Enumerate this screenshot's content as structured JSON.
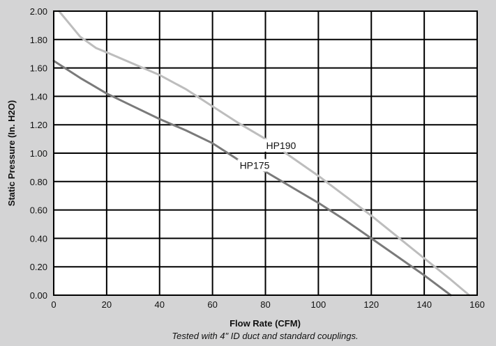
{
  "chart_data": {
    "type": "line",
    "title": "",
    "xlabel": "Flow Rate (CFM)",
    "ylabel": "Static Pressure (In. H2O)",
    "note": "Tested with 4\" ID duct and standard couplings.",
    "xlim": [
      0,
      160
    ],
    "ylim": [
      0,
      2.0
    ],
    "xticks": [
      "0",
      "20",
      "40",
      "60",
      "80",
      "100",
      "120",
      "140",
      "160"
    ],
    "yticks": [
      "0.00",
      "0.20",
      "0.40",
      "0.60",
      "0.80",
      "1.00",
      "1.20",
      "1.40",
      "1.60",
      "1.80",
      "2.00"
    ],
    "grid": true,
    "series": [
      {
        "name": "HP190",
        "color": "#bdbdbd",
        "x": [
          2,
          10,
          16,
          20,
          30,
          40,
          50,
          60,
          70,
          80,
          90,
          100,
          110,
          120,
          130,
          140,
          150,
          157
        ],
        "y": [
          2.0,
          1.82,
          1.74,
          1.71,
          1.63,
          1.55,
          1.45,
          1.33,
          1.21,
          1.1,
          0.97,
          0.84,
          0.7,
          0.56,
          0.41,
          0.26,
          0.11,
          0.0
        ]
      },
      {
        "name": "HP175",
        "color": "#7a7a7a",
        "x": [
          0,
          10,
          20,
          30,
          40,
          50,
          60,
          70,
          80,
          90,
          100,
          110,
          120,
          130,
          140,
          150
        ],
        "y": [
          1.65,
          1.53,
          1.42,
          1.33,
          1.24,
          1.16,
          1.07,
          0.95,
          0.87,
          0.76,
          0.65,
          0.53,
          0.4,
          0.27,
          0.14,
          0.0
        ]
      }
    ],
    "annotations": [
      {
        "text": "HP190",
        "x": 80,
        "y": 1.03
      },
      {
        "text": "HP175",
        "x": 70,
        "y": 0.89
      }
    ]
  }
}
